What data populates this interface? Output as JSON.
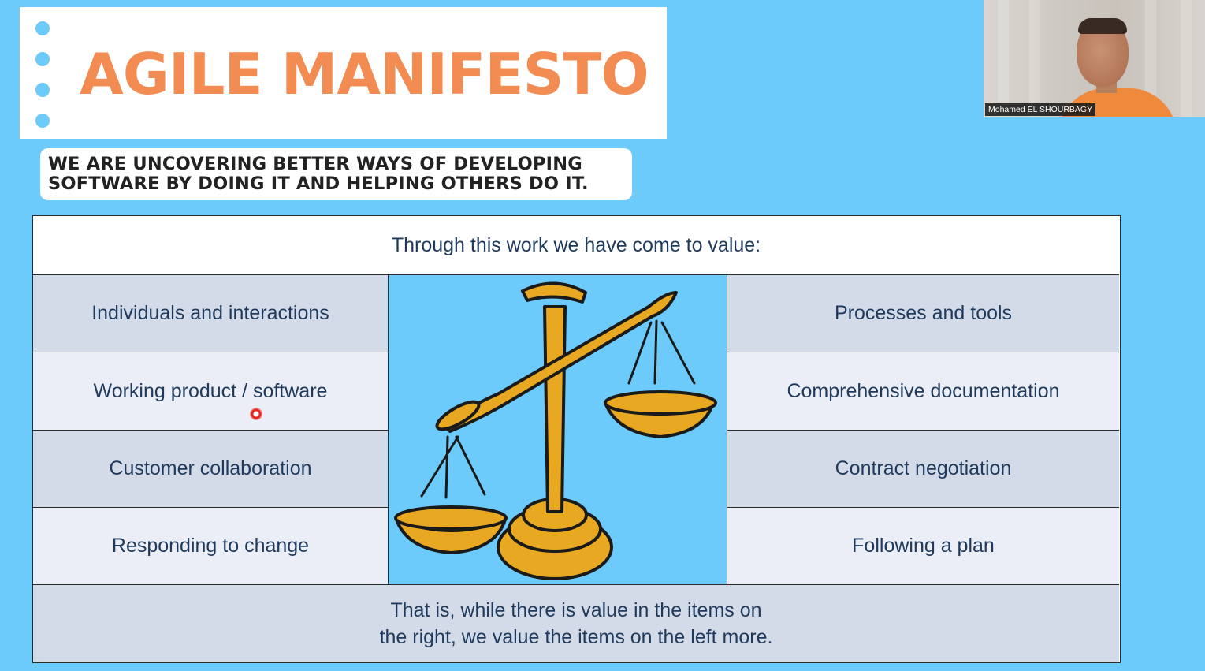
{
  "slide": {
    "title": "AGILE MANIFESTO",
    "subtitle_lines": [
      "WE ARE UNCOVERING BETTER WAYS OF DEVELOPING",
      "SOFTWARE BY DOING IT AND HELPING OTHERS DO IT."
    ],
    "table": {
      "header": "Through this work we have come to value:",
      "rows": [
        {
          "left": "Individuals and interactions",
          "right": "Processes and tools"
        },
        {
          "left": "Working product / software",
          "right": "Comprehensive documentation"
        },
        {
          "left": "Customer collaboration",
          "right": "Contract negotiation"
        },
        {
          "left": "Responding to change",
          "right": "Following a plan"
        }
      ],
      "footer_lines": [
        "That is, while there is value in the items on",
        "the right, we value the items on the left more."
      ],
      "image": "balance-scale-clipart"
    }
  },
  "webcam": {
    "participant_name": "Mohamed EL SHOURBAGY"
  },
  "colors": {
    "slide_background": "#6ccbfa",
    "title_orange": "#f28c52",
    "table_text": "#1f3a5c",
    "scale_gold": "#e8a822"
  }
}
